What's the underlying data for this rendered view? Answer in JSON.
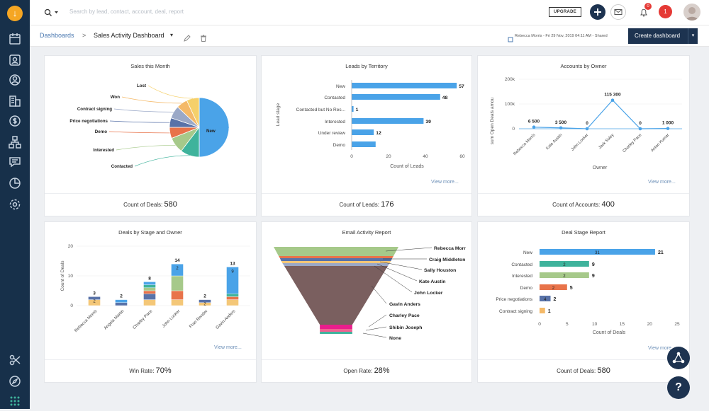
{
  "app": {
    "logo_glyph": "↓"
  },
  "topbar": {
    "search_placeholder": "Search by lead, contact, account, deal, report",
    "upgrade_label": "UPGRADE",
    "notif_count": "0",
    "alert_count": "1"
  },
  "subheader": {
    "breadcrumb_root": "Dashboards",
    "breadcrumb_sep": ">",
    "dashboard_name": "Sales Activity Dashboard",
    "caret": "▾",
    "meta": "Rebecca Morris - Fri 29 Nov, 2019 04:11 AM - Shared",
    "create_label": "Create dashboard"
  },
  "cards": {
    "sales_month": {
      "title": "Sales this Month",
      "footer_label": "Count of Deals:",
      "footer_value": "580"
    },
    "leads_territory": {
      "title": "Leads by Territory",
      "footer_label": "Count of Leads:",
      "footer_value": "176",
      "view_more": "View more..."
    },
    "accounts_owner": {
      "title": "Accounts by Owner",
      "footer_label": "Count of Accounts:",
      "footer_value": "400",
      "view_more": "View more..."
    },
    "deals_stage_owner": {
      "title": "Deals by Stage and Owner",
      "footer_label": "Win Rate:",
      "footer_value": "70%",
      "view_more": "View more..."
    },
    "email_activity": {
      "title": "Email Activity Report",
      "footer_label": "Open Rate:",
      "footer_value": "28%"
    },
    "deal_stage": {
      "title": "Deal Stage Report",
      "footer_label": "Count of Deals:",
      "footer_value": "580",
      "view_more": "View more..."
    }
  },
  "chart_data": [
    {
      "type": "pie",
      "title": "Sales this Month",
      "categories": [
        "New",
        "Contacted",
        "Interested",
        "Demo",
        "Price negotiations",
        "Contract signing",
        "Won",
        "Lost"
      ],
      "values": [
        290,
        60,
        50,
        35,
        30,
        40,
        35,
        40
      ],
      "colors": [
        "#4aa3e8",
        "#3fb39c",
        "#a6c98a",
        "#e8734a",
        "#5872a8",
        "#9aa8c7",
        "#f4b968",
        "#f5d06a"
      ]
    },
    {
      "type": "bar",
      "title": "Leads by Territory",
      "categories": [
        "New",
        "Contacted",
        "Contacted but No Res...",
        "Interested",
        "Under review",
        "Demo"
      ],
      "values": [
        57,
        48,
        1,
        39,
        12,
        13
      ],
      "labels": [
        "57",
        "48",
        "1",
        "39",
        "12",
        ""
      ],
      "xlabel": "Count of Leads",
      "ylabel": "Lead stage",
      "xlim": [
        0,
        60
      ],
      "xticks": [
        "0",
        "20",
        "40",
        "60"
      ],
      "color": "#4aa3e8"
    },
    {
      "type": "line",
      "title": "Accounts by Owner",
      "categories": [
        "Rebecca Morris",
        "Kate Austin",
        "John Locker",
        "Jack Soley",
        "Charley Pace",
        "Anton Kumar"
      ],
      "values": [
        6500,
        3500,
        0,
        115300,
        0,
        1000
      ],
      "labels": [
        "6 500",
        "3 500",
        "0",
        "115 300",
        "0",
        "1 000"
      ],
      "xlabel": "Owner",
      "ylabel": "sum Open Deals amou",
      "ylim": [
        -20000,
        200000
      ],
      "yticks": [
        "200k",
        "100k",
        "0"
      ],
      "color": "#4aa3e8"
    },
    {
      "type": "bar",
      "stacked": true,
      "title": "Deals by Stage and Owner",
      "categories": [
        "Rebecca Morris",
        "Angela Martin",
        "Charley Pace",
        "John Locker",
        "Fran Render",
        "Gavin Anders"
      ],
      "totals": [
        3,
        2,
        8,
        14,
        2,
        13
      ],
      "inner_labels": [
        "2",
        "",
        "",
        "2",
        "2",
        "9"
      ],
      "ylabel": "Count of Deals",
      "ylim": [
        0,
        20
      ],
      "yticks": [
        "20",
        "10",
        "0"
      ],
      "series": [
        {
          "name": "New",
          "color": "#4aa3e8",
          "values": [
            0,
            1,
            1,
            4,
            0,
            9
          ]
        },
        {
          "name": "Contacted",
          "color": "#3fb39c",
          "values": [
            0,
            0,
            1,
            0,
            0,
            1
          ]
        },
        {
          "name": "Interested",
          "color": "#a6c98a",
          "values": [
            0,
            0,
            1,
            5,
            0,
            0
          ]
        },
        {
          "name": "Demo",
          "color": "#e8734a",
          "values": [
            0,
            0,
            1,
            3,
            0,
            1
          ]
        },
        {
          "name": "Price negotiations",
          "color": "#5872a8",
          "values": [
            1,
            1,
            2,
            0,
            1,
            0
          ]
        },
        {
          "name": "Contract signing",
          "color": "#f4c778",
          "values": [
            2,
            0,
            2,
            2,
            1,
            2
          ]
        }
      ]
    },
    {
      "type": "funnel",
      "title": "Email Activity Report",
      "categories": [
        "Rebecca Morr",
        "Craig Middleton",
        "Sally Houston",
        "Kate Austin",
        "John Locker",
        "Gavin Anders",
        "Charley Pace",
        "Shibin Joseph",
        "None"
      ]
    },
    {
      "type": "bar",
      "title": "Deal Stage Report",
      "categories": [
        "New",
        "Contacted",
        "Interested",
        "Demo",
        "Price negotiations",
        "Contract signing"
      ],
      "values": [
        21,
        9,
        9,
        5,
        2,
        1
      ],
      "inner_labels": [
        "31",
        "2",
        "2",
        "2",
        "4",
        ""
      ],
      "colors": [
        "#4aa3e8",
        "#3fb39c",
        "#a6c98a",
        "#e8734a",
        "#5872a8",
        "#f4b968"
      ],
      "xlabel": "Count of Deals",
      "xlim": [
        0,
        25
      ],
      "xticks": [
        "0",
        "5",
        "10",
        "15",
        "20",
        "25"
      ]
    }
  ]
}
